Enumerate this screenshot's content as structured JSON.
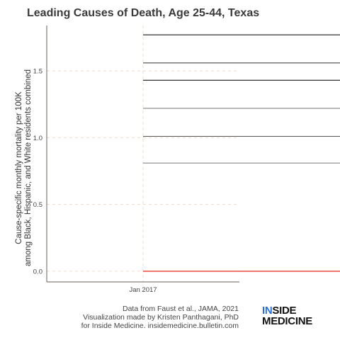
{
  "title": "Leading Causes of Death, Age 25-44, Texas",
  "caption": {
    "line1": "Data from Faust et al., JAMA, 2021",
    "line2": "Visualization made by Kristen Panthagani, PhD",
    "line3": "for Inside Medicine. insidemedicine.bulletin.com"
  },
  "logo": {
    "part1_accent": "IN",
    "part1_rest": "SIDE",
    "part2": "MEDICINE",
    "accent_color": "#2a6fd6"
  },
  "chart_data": {
    "type": "line",
    "title": "Leading Causes of Death, Age 25-44, Texas",
    "xlabel": "",
    "ylabel_lines": [
      "Cause-specific monthly mortality per 100K",
      "among Black, Hispanic, and White residents combined"
    ],
    "x_ticks": [
      "Jan 2017"
    ],
    "y_ticks": [
      "0.0",
      "0.5",
      "1.0",
      "1.5"
    ],
    "ylim": [
      -0.08,
      1.84
    ],
    "grid": "dashed",
    "series": [
      {
        "value": 1.77,
        "color": "#1a1a1a"
      },
      {
        "value": 1.56,
        "color": "#4a4a4a"
      },
      {
        "value": 1.43,
        "color": "#1a1a1a"
      },
      {
        "value": 1.22,
        "color": "#808080"
      },
      {
        "value": 1.01,
        "color": "#555555"
      },
      {
        "value": 0.81,
        "color": "#8a8a8a"
      },
      {
        "value": 0.0,
        "color": "#e8392c"
      }
    ]
  }
}
